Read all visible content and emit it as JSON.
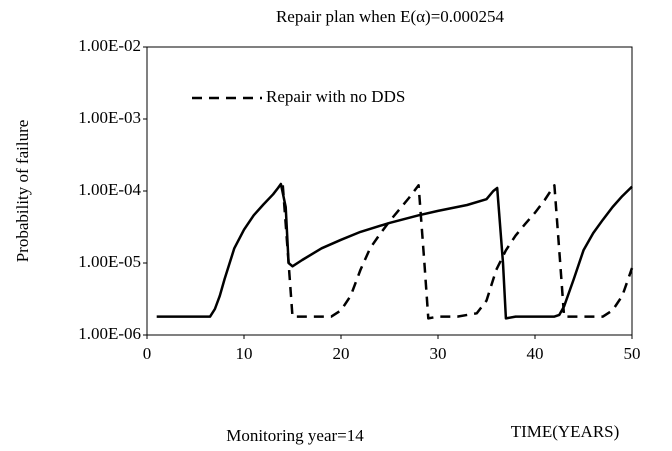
{
  "chart_data": {
    "type": "line",
    "title": "Repair plan when E(α)=0.000254",
    "ylabel": "Probability of failure",
    "xlabel": "TIME(YEARS)",
    "annotation": "Monitoring year=14",
    "xlim": [
      0,
      50
    ],
    "xticks": [
      0,
      10,
      20,
      30,
      40,
      50
    ],
    "ylim": [
      1e-06,
      0.01
    ],
    "yscale": "log",
    "yticks": [
      {
        "value": 1e-06,
        "label": "1.00E-06"
      },
      {
        "value": 1e-05,
        "label": "1.00E-05"
      },
      {
        "value": 0.0001,
        "label": "1.00E-04"
      },
      {
        "value": 0.001,
        "label": "1.00E-03"
      },
      {
        "value": 0.01,
        "label": "1.00E-02"
      }
    ],
    "legend": "upper left",
    "series": [
      {
        "color": "#000000",
        "style": "solid",
        "x": [
          1,
          2,
          3,
          4,
          5,
          6,
          6.5,
          7,
          7.5,
          8,
          9,
          10,
          11,
          12,
          13,
          13.5,
          13.8,
          14.3,
          14.6,
          15,
          16,
          18,
          20,
          22,
          25,
          28,
          30,
          33,
          35,
          35.7,
          36.1,
          36.7,
          37,
          38,
          40,
          42,
          42.5,
          43,
          44,
          45,
          46,
          47,
          48,
          49,
          50
        ],
        "values": [
          1.8e-06,
          1.8e-06,
          1.8e-06,
          1.8e-06,
          1.8e-06,
          1.8e-06,
          1.8e-06,
          2.3e-06,
          3.5e-06,
          6e-06,
          1.6e-05,
          2.9e-05,
          4.6e-05,
          6.5e-05,
          9e-05,
          0.00011,
          0.000125,
          6e-05,
          1e-05,
          9e-06,
          1.1e-05,
          1.6e-05,
          2.1e-05,
          2.7e-05,
          3.6e-05,
          4.6e-05,
          5.3e-05,
          6.4e-05,
          7.7e-05,
          0.0001,
          0.00011,
          1e-05,
          1.7e-06,
          1.8e-06,
          1.8e-06,
          1.8e-06,
          1.9e-06,
          2.5e-06,
          6e-06,
          1.5e-05,
          2.6e-05,
          4e-05,
          6e-05,
          8.5e-05,
          0.000115
        ]
      },
      {
        "name": "Repair with no DDS",
        "color": "#000000",
        "style": "dashed",
        "x": [
          14,
          14.6,
          15,
          16,
          18,
          19,
          20,
          21,
          22,
          23,
          24,
          25,
          26,
          27,
          28,
          28.6,
          29,
          30,
          32,
          34,
          35,
          36,
          37,
          38,
          39,
          40,
          41,
          42,
          42.6,
          43,
          45,
          47,
          48,
          49,
          50
        ],
        "values": [
          0.00012,
          1e-05,
          1.8e-06,
          1.8e-06,
          1.8e-06,
          1.8e-06,
          2.2e-06,
          3.5e-06,
          8e-06,
          1.6e-05,
          2.5e-05,
          3.8e-05,
          5.5e-05,
          8e-05,
          0.00012,
          1e-05,
          1.7e-06,
          1.8e-06,
          1.8e-06,
          2e-06,
          3e-06,
          8e-06,
          1.5e-05,
          2.4e-05,
          3.5e-05,
          5e-05,
          7.5e-05,
          0.00012,
          1e-05,
          1.8e-06,
          1.8e-06,
          1.8e-06,
          2.2e-06,
          3.5e-06,
          8.5e-06
        ]
      }
    ]
  }
}
